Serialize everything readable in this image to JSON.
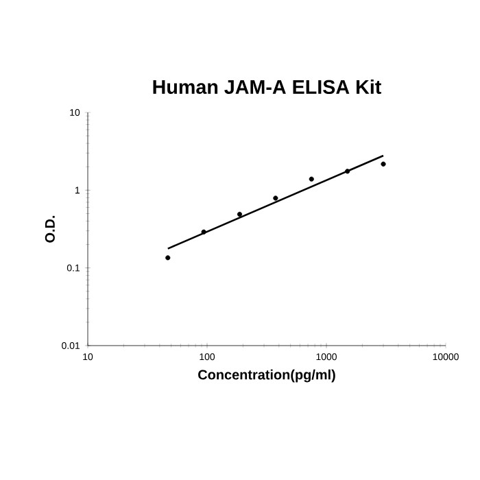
{
  "chart_data": {
    "type": "scatter",
    "title": "Human JAM-A ELISA Kit",
    "xlabel": "Concentration(pg/ml)",
    "ylabel": "O.D.",
    "log": "xy",
    "xlim": [
      10,
      10000
    ],
    "ylim": [
      0.01,
      10
    ],
    "xticks": [
      10,
      100,
      1000,
      10000
    ],
    "yticks": [
      0.01,
      0.1,
      1,
      10
    ],
    "x": [
      46.9,
      93.8,
      187.5,
      375,
      750,
      1500,
      3000
    ],
    "series": [
      {
        "color": "#000000",
        "marker": "circle",
        "values": [
          0.135,
          0.29,
          0.49,
          0.79,
          1.39,
          1.75,
          2.17
        ]
      },
      {
        "type": "line",
        "color": "#000000",
        "marker": "none",
        "x": [
          46.9,
          3000
        ],
        "values": [
          0.177,
          2.78
        ]
      }
    ]
  }
}
